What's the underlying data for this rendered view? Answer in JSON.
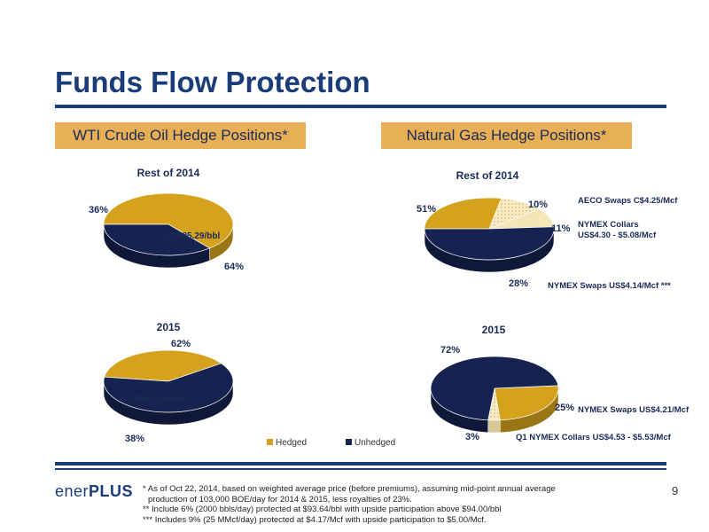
{
  "header": {
    "title": "Funds Flow Protection"
  },
  "sections": {
    "oil": "WTI Crude Oil Hedge Positions*",
    "gas": "Natural Gas Hedge Positions*"
  },
  "colors": {
    "hedged": "#d4a21c",
    "unhedged": "#16224f",
    "aeco": "#f5e6b8",
    "collars": "#f0e2ba",
    "title": "#1a3c78"
  },
  "chart_data": [
    {
      "type": "pie",
      "title": "Rest of 2014",
      "slices": [
        {
          "label": "Hedged",
          "value": 64,
          "value_label": "64%",
          "annotation": "US$95.29/bbl"
        },
        {
          "label": "Unhedged",
          "value": 36,
          "value_label": "36%"
        }
      ]
    },
    {
      "type": "pie",
      "title": "2015",
      "slices": [
        {
          "label": "Hedged",
          "value": 38,
          "value_label": "38%",
          "annotation": "US$93.68/bbl **"
        },
        {
          "label": "Unhedged",
          "value": 62,
          "value_label": "62%"
        }
      ]
    },
    {
      "type": "pie",
      "title": "Rest of 2014",
      "slices": [
        {
          "label": "NYMEX Swaps US$4.14/Mcf ***",
          "value": 28,
          "value_label": "28%"
        },
        {
          "label": "NYMEX Collars US$4.30 - $5.08/Mcf",
          "value": 11,
          "value_label": "11%"
        },
        {
          "label": "AECO Swaps C$4.25/Mcf",
          "value": 10,
          "value_label": "10%"
        },
        {
          "label": "Unhedged",
          "value": 51,
          "value_label": "51%"
        }
      ]
    },
    {
      "type": "pie",
      "title": "2015",
      "slices": [
        {
          "label": "NYMEX Swaps US$4.21/Mcf",
          "value": 25,
          "value_label": "25%"
        },
        {
          "label": "Q1 NYMEX Collars US$4.53 - $5.53/Mcf",
          "value": 3,
          "value_label": "3%"
        },
        {
          "label": "Unhedged",
          "value": 72,
          "value_label": "72%"
        }
      ]
    }
  ],
  "legend": {
    "hedged": "Hedged",
    "unhedged": "Unhedged"
  },
  "gas_labels": {
    "aeco": "AECO Swaps C$4.25/Mcf",
    "collars_line1": "NYMEX Collars",
    "collars_line2": "US$4.30 - $5.08/Mcf",
    "swaps_2014": "NYMEX Swaps US$4.14/Mcf ***",
    "swaps_2015": "NYMEX Swaps US$4.21/Mcf",
    "q1_collars": "Q1 NYMEX Collars US$4.53 - $5.53/Mcf"
  },
  "footer": {
    "logo_prefix": "ener",
    "logo_suffix": "PLUS",
    "notes": [
      "* As of Oct 22, 2014, based on weighted average price (before premiums), assuming mid-point annual average",
      "production of 103,000 BOE/day for 2014 & 2015, less royalties of 23%.",
      "** Include 6% (2000 bbls/day) protected at $93.64/bbl with  upside participation above $94.00/bbl",
      "*** Includes 9% (25 MMcf/day) protected at $4.17/Mcf with upside participation to $5.00/Mcf."
    ],
    "page_number": "9"
  }
}
